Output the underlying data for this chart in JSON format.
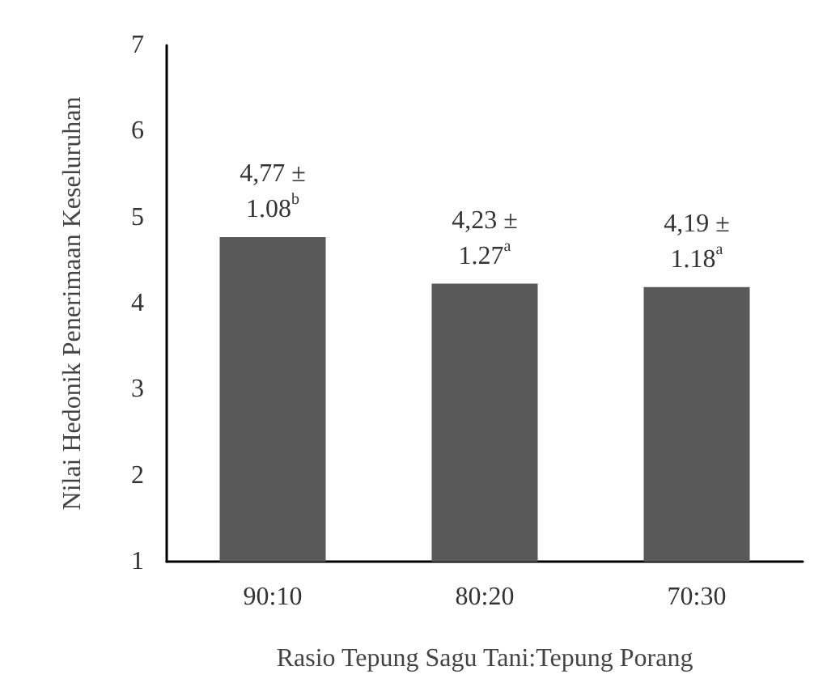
{
  "chart_data": {
    "type": "bar",
    "xlabel": "Rasio Tepung Sagu Tani:Tepung Porang",
    "ylabel": "Nilai Hedonik Penerimaan Keseluruhan",
    "categories": [
      "90:10",
      "80:20",
      "70:30"
    ],
    "values": [
      4.77,
      4.23,
      4.19
    ],
    "value_labels": [
      "4,77 ±\n1.08$^{b}$",
      "4,23 ±\n1.27$^{a}$",
      "4,19 ±\n1.18$^{a}$"
    ],
    "color": "#595959",
    "ylim": [
      1,
      7
    ],
    "yticks": [
      1,
      2,
      3,
      4,
      5,
      6,
      7
    ],
    "grid": false
  }
}
